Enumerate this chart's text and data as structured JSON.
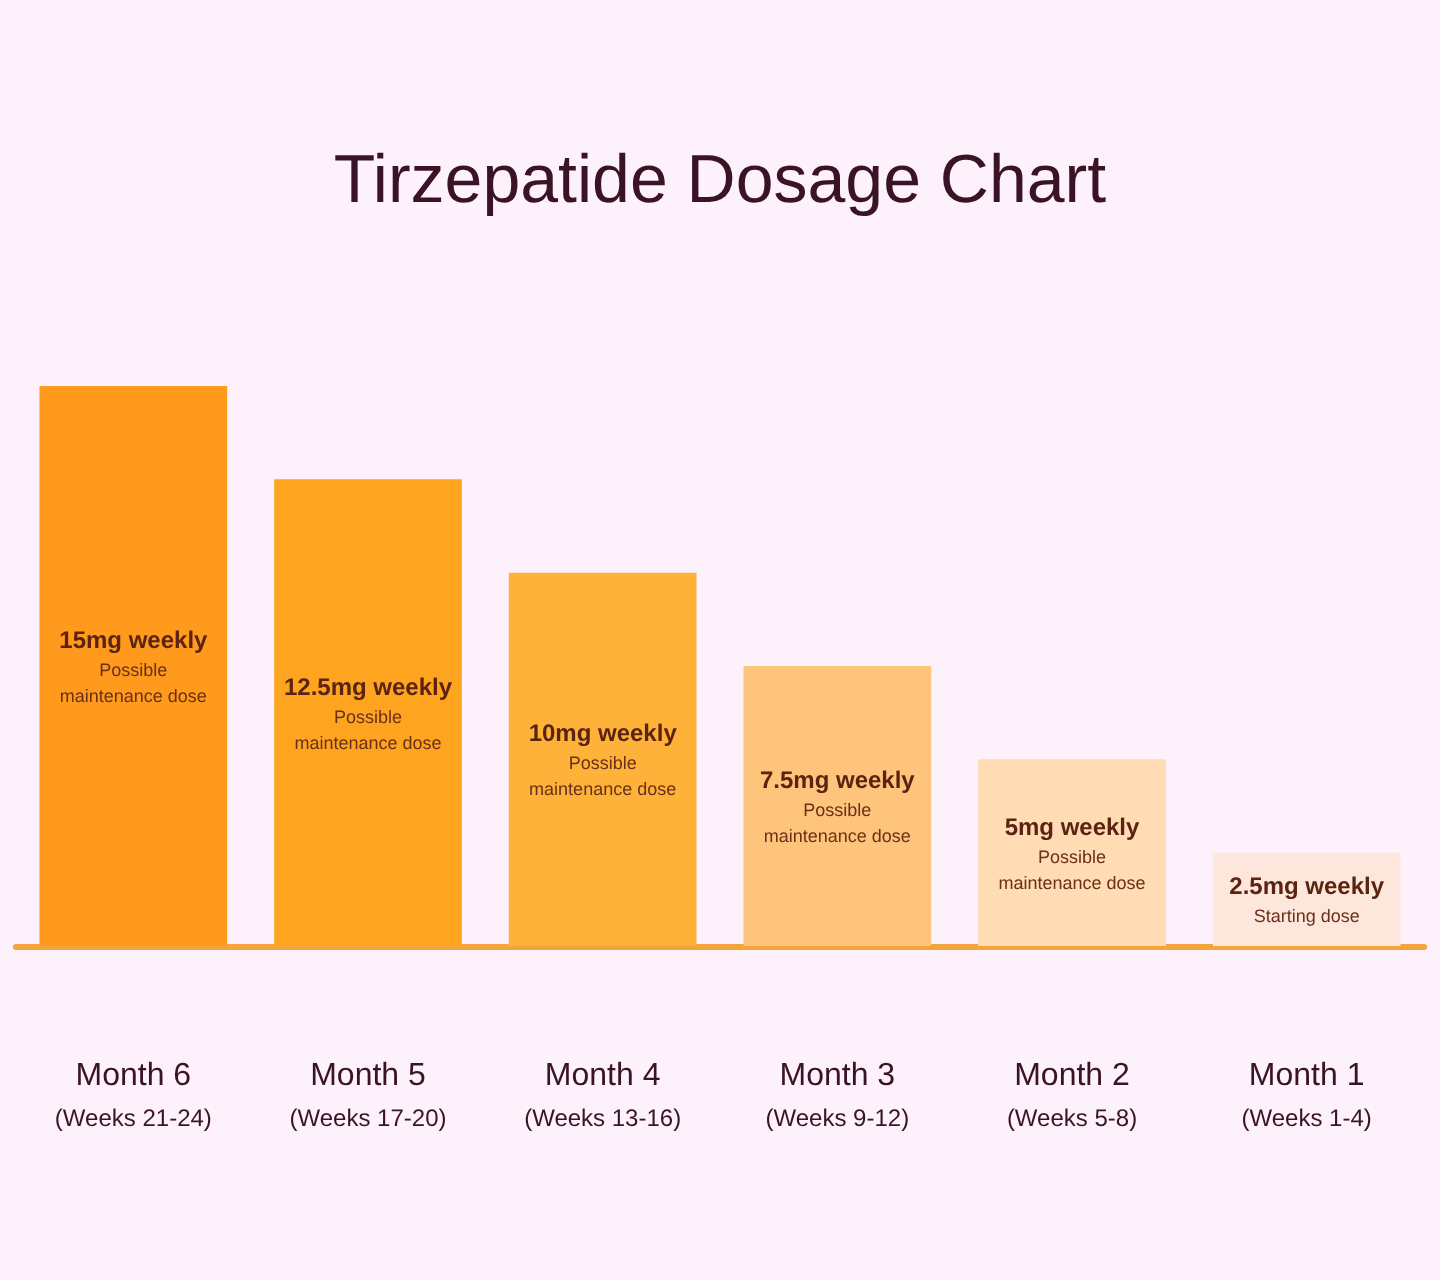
{
  "chart_data": {
    "type": "bar",
    "title": "Tirzepatide Dosage Chart",
    "categories": [
      "Month 6\n(Weeks 21-24)",
      "Month 5\n(Weeks 17-20)",
      "Month 4\n(Weeks 13-16)",
      "Month 3\n(Weeks 9-12)",
      "Month 2\n(Weeks 5-8)",
      "Month 1\n(Weeks 1-4)"
    ],
    "values": [
      15,
      12.5,
      10,
      7.5,
      5,
      2.5
    ],
    "colors": [
      "#ff9a1c",
      "#ffa41e",
      "#ffb23a",
      "#ffc47c",
      "#ffdcb4",
      "#fde7dc"
    ],
    "value_labels": [
      "15mg weekly\nPossible\nmaintenance dose",
      "12.5mg weekly\nPossible\nmaintenance dose",
      "10mg weekly\nPossible\nmaintenance dose",
      "7.5mg weekly\nPossible\nmaintenance dose",
      "5mg weekly\nPossible\nmaintenance dose",
      "2.5mg weekly\nStarting dose"
    ],
    "tick_labels": "x"
  }
}
